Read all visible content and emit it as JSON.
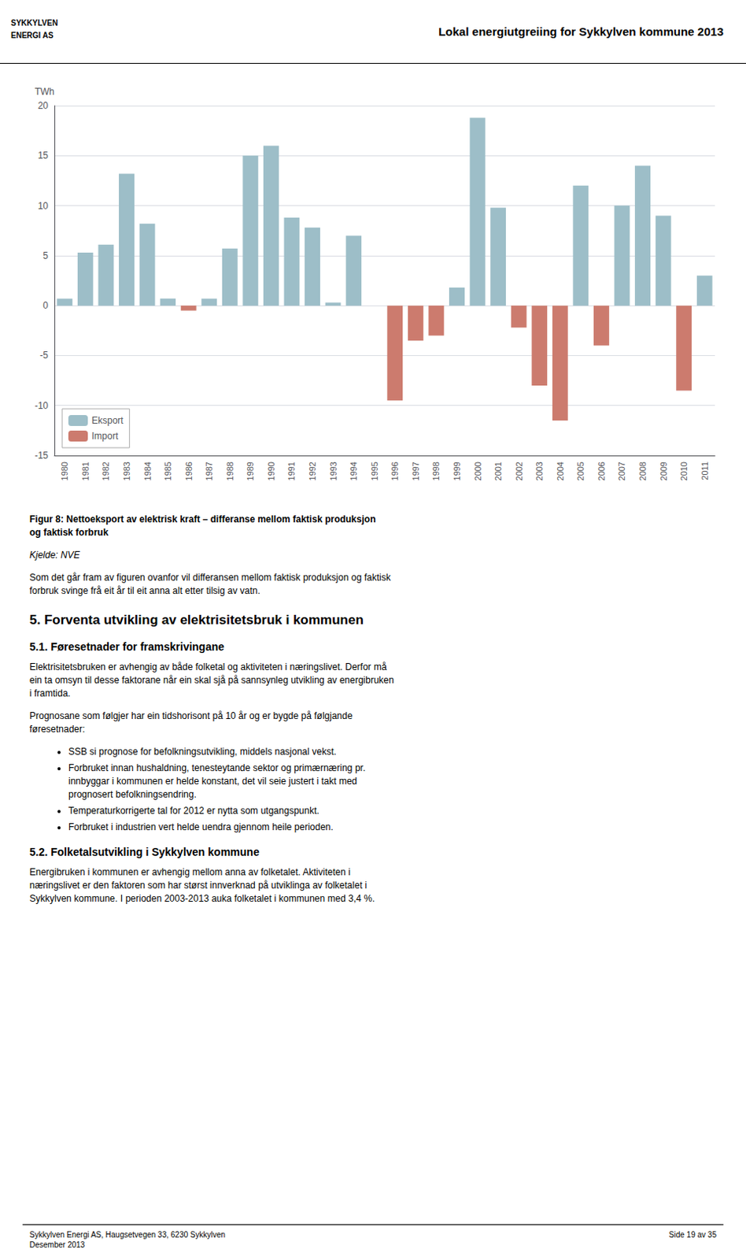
{
  "chart_data": {
    "type": "bar",
    "ylabel": "TWh",
    "categories": [
      "1980",
      "1981",
      "1982",
      "1983",
      "1984",
      "1985",
      "1986",
      "1987",
      "1988",
      "1989",
      "1990",
      "1991",
      "1992",
      "1993",
      "1994",
      "1995",
      "1996",
      "1997",
      "1998",
      "1999",
      "2000",
      "2001",
      "2002",
      "2003",
      "2004",
      "2005",
      "2006",
      "2007",
      "2008",
      "2009",
      "2010",
      "2011"
    ],
    "series": [
      {
        "name": "Eksport",
        "color": "#9dbec8",
        "values": [
          0.7,
          5.3,
          6.1,
          13.2,
          8.2,
          0.7,
          0.0,
          0.7,
          5.7,
          15.0,
          16.0,
          8.8,
          7.8,
          0.3,
          7.0,
          0.0,
          0.0,
          0.0,
          0.0,
          1.8,
          18.8,
          9.8,
          0.0,
          0.0,
          0.0,
          12.0,
          0.0,
          10.0,
          14.0,
          9.0,
          0.0,
          3.0
        ]
      },
      {
        "name": "Import",
        "color": "#cc7b6e",
        "values": [
          0.0,
          0.0,
          0.0,
          0.0,
          0.0,
          0.0,
          -0.5,
          0.0,
          0.0,
          0.0,
          0.0,
          0.0,
          0.0,
          0.0,
          0.0,
          0.0,
          -9.5,
          -3.5,
          -3.0,
          0.0,
          0.0,
          0.0,
          -2.2,
          -8.0,
          -11.5,
          0.0,
          -4.0,
          0.0,
          0.0,
          0.0,
          -8.5,
          0.0
        ]
      }
    ],
    "ylim": [
      -15,
      20
    ],
    "yticks": [
      -15,
      -10,
      -5,
      0,
      5,
      10,
      15,
      20
    ],
    "grid": true,
    "legend": "lower left",
    "annotations": [
      "SYKKYLVEN",
      "ENERGI AS",
      "Lokal energiutgreiing for Sykkylven kommune 2013",
      "Figur 8: Nettoeksport av elektrisk kraft – differanse mellom faktisk produksjon\nog faktisk forbruk",
      "Kjelde: NVE",
      "Som det går fram av figuren ovanfor vil differansen mellom faktisk produksjon og faktisk\nforbruk svinge frå eit år til eit anna alt etter tilsig av vatn.",
      "5.  Forventa utvikling av elektrisitetsbruk i kommunen",
      "5.1.    Føresetnader for framskrivingane",
      "Elektrisitetsbruken er avhengig av både folketal og aktiviteten i næringslivet. Derfor må\nein ta omsyn til desse faktorane når ein skal sjå på sannsynleg utvikling av energibruken\ni framtida.",
      "Prognosane som følgjer har ein tidshorisont på 10 år og er bygde på følgjande\nføresetnader:",
      "SSB si prognose for befolkningsutvikling, middels nasjonal vekst.",
      "Forbruket innan hushaldning, tenesteytande sektor og primærnæring pr.\ninnbyggar i kommunen er helde konstant, det vil seie justert i takt med\nprognosert befolkningsendring.",
      "Temperaturkorrigerte tal for 2012 er nytta som utgangspunkt.",
      "Forbruket i industrien vert helde uendra gjennom heile perioden.",
      "5.2.    Folketalsutvikling i Sykkylven kommune",
      "Energibruken i kommunen er avhengig mellom anna av folketalet. Aktiviteten i\nnæringslivet er den faktoren som har størst innverknad på utviklinga av folketalet i\nSykkylven kommune. I perioden 2003-2013 auka folketalet i kommunen med 3,4 %.",
      "Sykkylven Energi AS, Haugsetvegen 33, 6230 Sykkylven\nDesember 2013",
      "Side 19 av 35"
    ]
  }
}
